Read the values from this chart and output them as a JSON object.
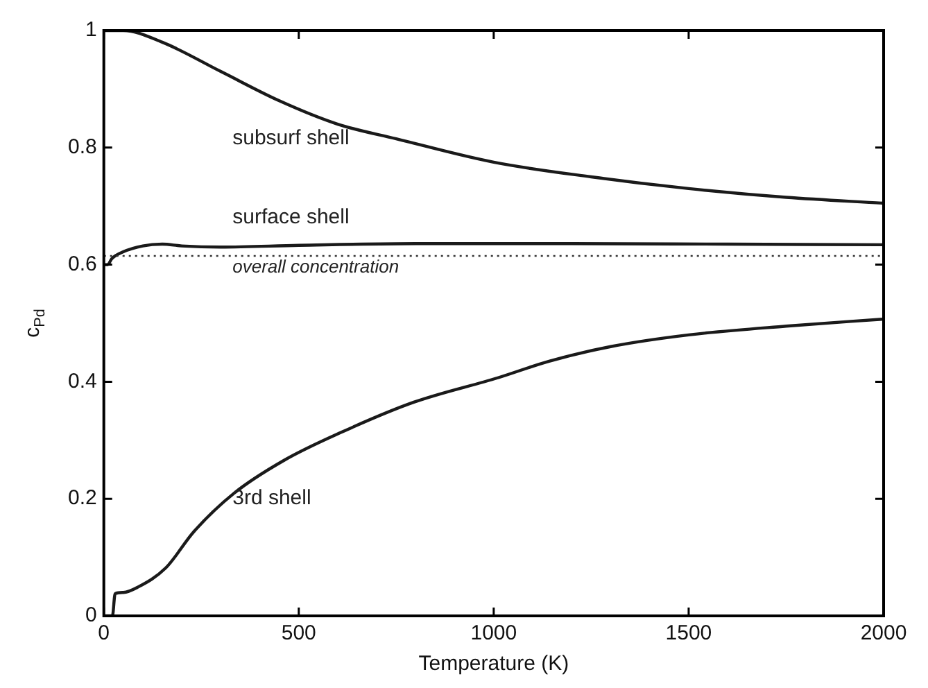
{
  "chart_data": {
    "type": "line",
    "xlabel": "Temperature (K)",
    "ylabel": "c$_{Pd}$",
    "xlim": [
      0,
      2000
    ],
    "xticks": [
      0,
      500,
      1000,
      1500,
      2000
    ],
    "ylim": [
      0,
      1
    ],
    "yticks": [
      0,
      0.2,
      0.4,
      0.6,
      0.8,
      1
    ],
    "grid": false,
    "legend": false,
    "marker": "none",
    "line_style": "solid",
    "series": [
      {
        "name": "subsurf shell",
        "color": "#1a1a1a",
        "x": [
          0,
          50,
          150,
          300,
          450,
          600,
          750,
          1000,
          1250,
          1500,
          1750,
          2000
        ],
        "values": [
          1,
          1,
          0.98,
          0.93,
          0.88,
          0.84,
          0.815,
          0.775,
          0.75,
          0.73,
          0.715,
          0.705
        ]
      },
      {
        "name": "surface shell",
        "color": "#1a1a1a",
        "x": [
          0,
          10,
          20,
          50,
          100,
          150,
          200,
          300,
          500,
          800,
          1200,
          1600,
          2000
        ],
        "values": [
          0.6,
          0.6,
          0.61,
          0.622,
          0.632,
          0.635,
          0.632,
          0.63,
          0.633,
          0.636,
          0.636,
          0.635,
          0.634
        ]
      },
      {
        "name": "3rd shell",
        "color": "#1a1a1a",
        "x": [
          0,
          22,
          29,
          50,
          87,
          159,
          231,
          333,
          463,
          607,
          795,
          1012,
          1142,
          1300,
          1500,
          1750,
          2000
        ],
        "values": [
          0,
          0,
          0.038,
          0.04,
          0.049,
          0.082,
          0.144,
          0.209,
          0.266,
          0.313,
          0.365,
          0.407,
          0.435,
          0.46,
          0.48,
          0.495,
          0.507
        ]
      }
    ],
    "ref_lines": [
      {
        "axis": "y",
        "value": 0.615,
        "label": "overall concentration",
        "line_style": "dotted",
        "color": "#333333"
      }
    ]
  }
}
